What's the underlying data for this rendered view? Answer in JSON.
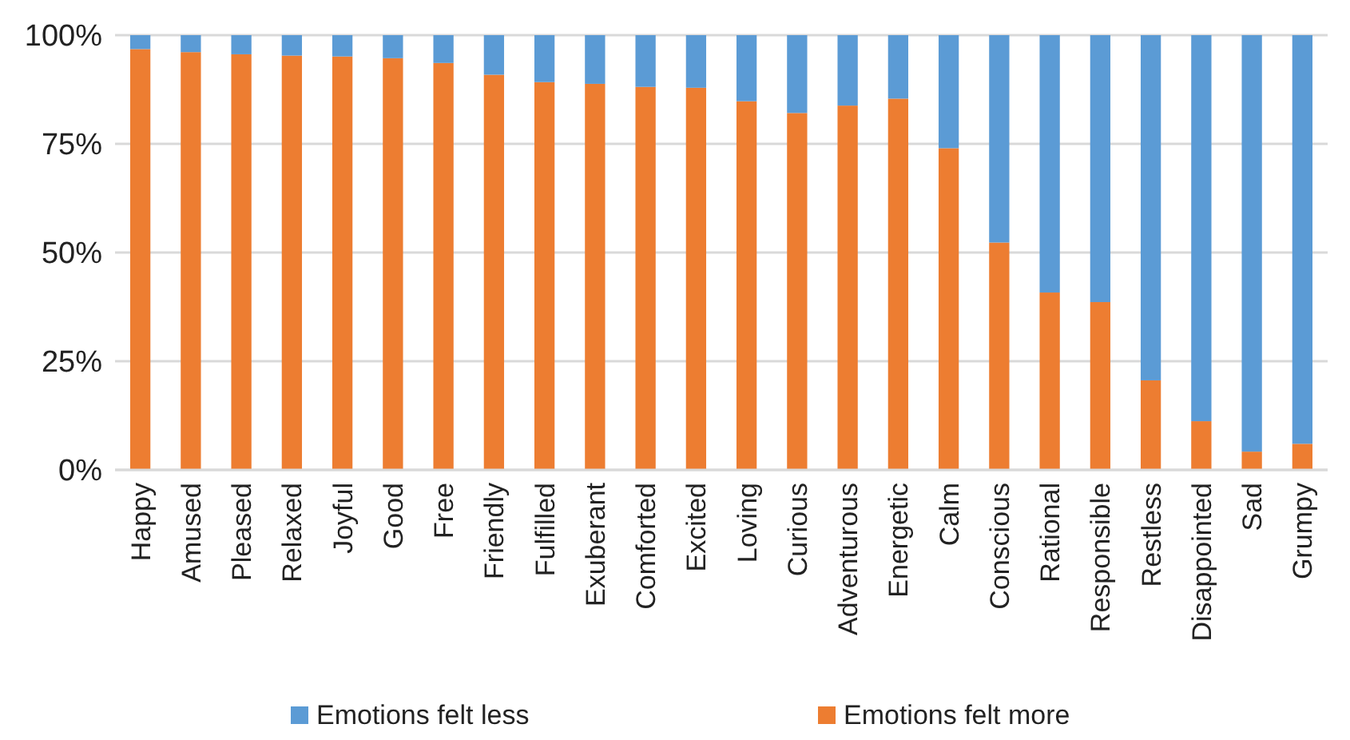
{
  "chart_data": {
    "type": "bar",
    "stacked": true,
    "categories": [
      "Happy",
      "Amused",
      "Pleased",
      "Relaxed",
      "Joyful",
      "Good",
      "Free",
      "Friendly",
      "Fulfilled",
      "Exuberant",
      "Comforted",
      "Excited",
      "Loving",
      "Curious",
      "Adventurous",
      "Energetic",
      "Calm",
      "Conscious",
      "Rational",
      "Responsible",
      "Restless",
      "Disappointed",
      "Sad",
      "Grumpy"
    ],
    "series": [
      {
        "name": "Emotions felt more",
        "color": "#ed7d31",
        "values": [
          96.8,
          96.1,
          95.6,
          95.3,
          95.1,
          94.7,
          93.6,
          90.9,
          89.2,
          88.8,
          88.1,
          87.9,
          84.8,
          82.1,
          83.8,
          85.4,
          74.0,
          52.3,
          40.8,
          38.6,
          20.6,
          11.2,
          4.2,
          6.0
        ]
      },
      {
        "name": "Emotions felt less",
        "color": "#5b9bd5",
        "values": [
          3.2,
          3.9,
          4.4,
          4.7,
          4.9,
          5.3,
          6.4,
          9.1,
          10.8,
          11.2,
          11.9,
          12.1,
          15.2,
          17.9,
          16.2,
          14.6,
          26.0,
          47.7,
          59.2,
          61.4,
          79.4,
          88.8,
          95.8,
          94.0
        ]
      }
    ],
    "ylim": [
      0,
      100
    ],
    "yticks": [
      {
        "value": 0,
        "label": "0%"
      },
      {
        "value": 25,
        "label": "25%"
      },
      {
        "value": 50,
        "label": "50%"
      },
      {
        "value": 75,
        "label": "75%"
      },
      {
        "value": 100,
        "label": "100%"
      }
    ],
    "grid": "y",
    "legend": "bottom"
  }
}
